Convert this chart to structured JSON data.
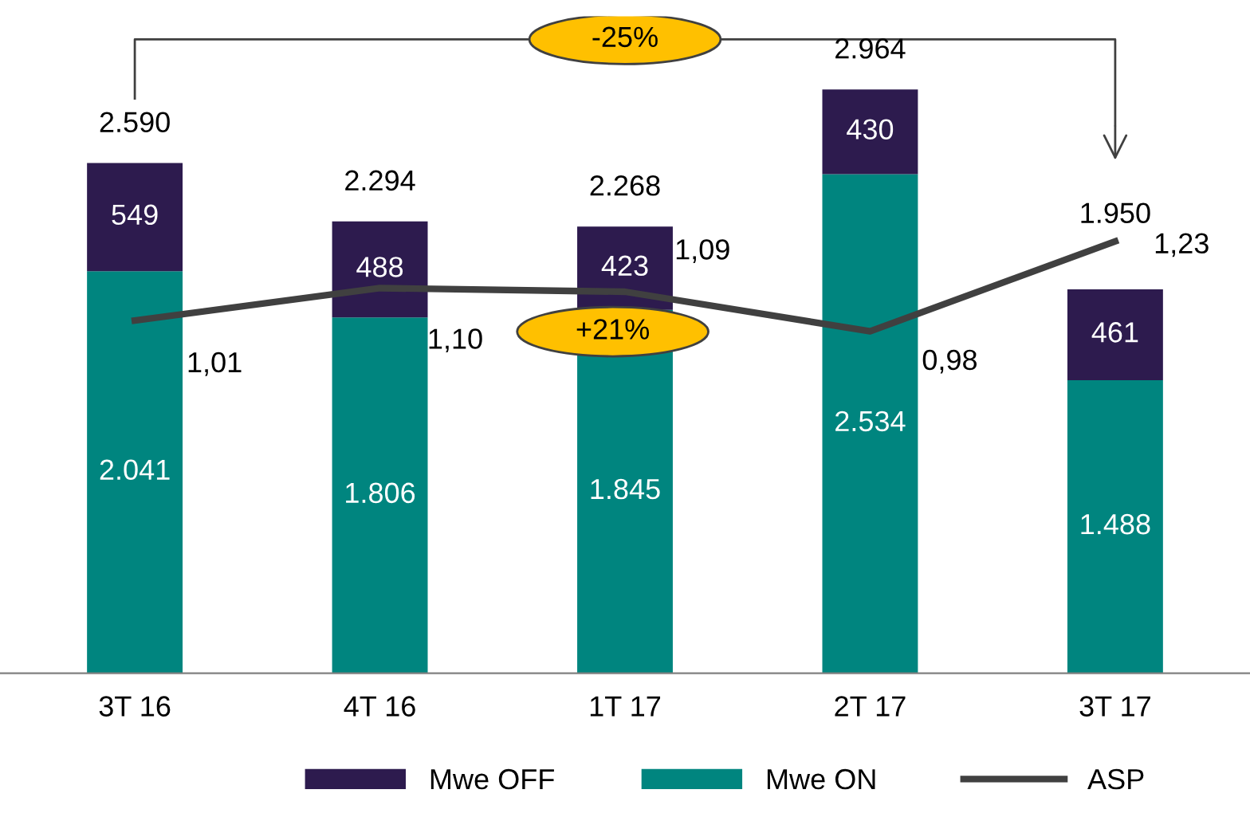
{
  "chart_data": {
    "type": "bar",
    "stacked": true,
    "categories": [
      "3T 16",
      "4T 16",
      "1T 17",
      "2T 17",
      "3T 17"
    ],
    "series": [
      {
        "name": "Mwe ON",
        "color": "#00857f",
        "values": [
          2041,
          1806,
          1845,
          2534,
          1488
        ],
        "value_labels": [
          "2.041",
          "1.806",
          "1.845",
          "2.534",
          "1.488"
        ]
      },
      {
        "name": "Mwe OFF",
        "color": "#2d1b4e",
        "values": [
          549,
          488,
          423,
          430,
          461
        ],
        "value_labels": [
          "549",
          "488",
          "423",
          "430",
          "461"
        ]
      },
      {
        "name": "ASP",
        "type": "line",
        "axis": "y2",
        "color": "#404040",
        "values": [
          1.01,
          1.1,
          1.09,
          0.98,
          1.23
        ],
        "value_labels": [
          "1,01",
          "1,10",
          "1,09",
          "0,98",
          "1,23"
        ]
      }
    ],
    "totals": [
      "2.590",
      "2.294",
      "2.268",
      "2.964",
      "1.950"
    ],
    "tick_labels": "x",
    "grid": false,
    "legend": "bottom",
    "annotations": [
      "-25%",
      "+21%"
    ]
  }
}
